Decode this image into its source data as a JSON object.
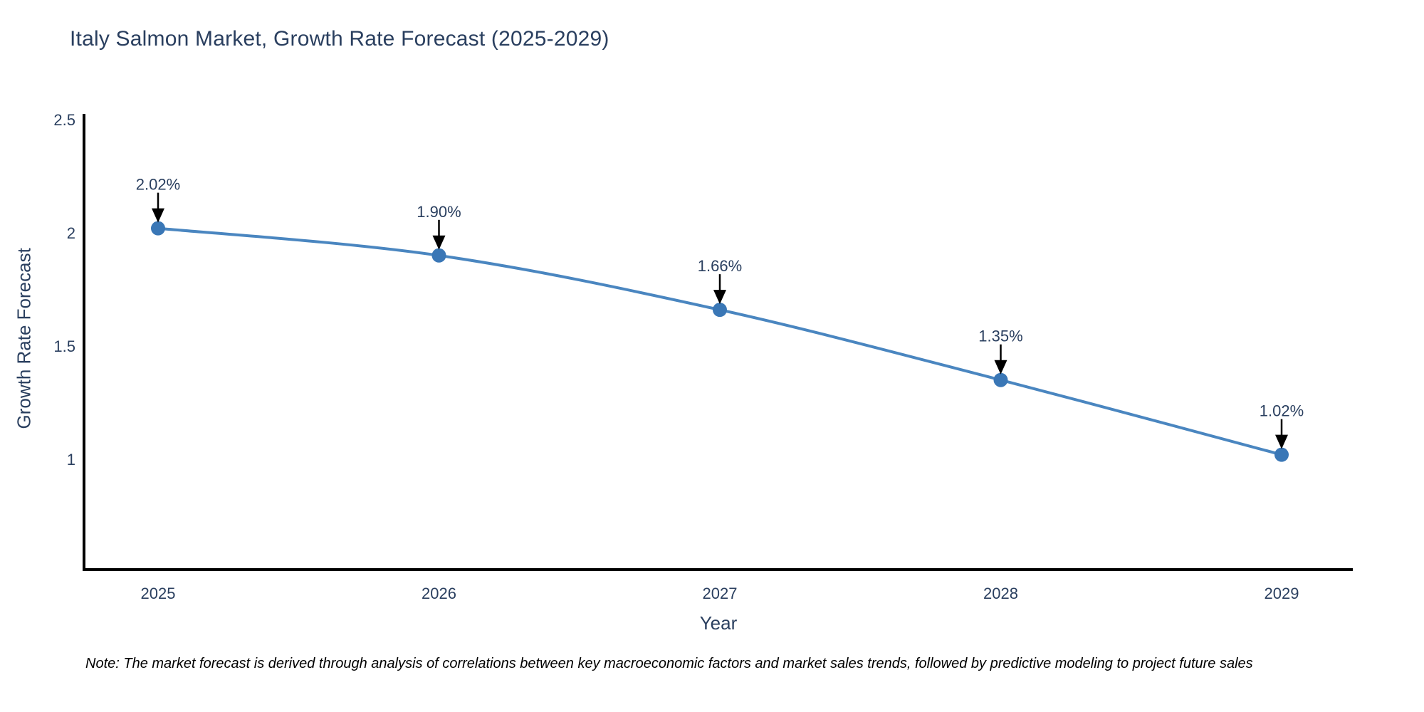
{
  "title": "Italy Salmon Market, Growth Rate Forecast (2025-2029)",
  "note": "Note: The market forecast is derived through analysis of correlations between key macroeconomic factors and market sales trends, followed by predictive modeling to project future sales",
  "colors": {
    "text": "#2a3f5f",
    "axis": "#000000",
    "line": "#4a86c0",
    "marker": "#3a77b6",
    "annotation_arrow": "#000000",
    "background": "#ffffff"
  },
  "chart_data": {
    "type": "line",
    "title": "Italy Salmon Market, Growth Rate Forecast (2025-2029)",
    "xlabel": "Year",
    "ylabel": "Growth Rate Forecast",
    "x": [
      "2025",
      "2026",
      "2027",
      "2028",
      "2029"
    ],
    "series": [
      {
        "name": "Growth Rate Forecast",
        "values": [
          2.02,
          1.9,
          1.66,
          1.35,
          1.02
        ]
      }
    ],
    "point_labels": [
      "2.02%",
      "1.90%",
      "1.66%",
      "1.35%",
      "1.02%"
    ],
    "yticks": [
      {
        "value": 1,
        "label": "1"
      },
      {
        "value": 1.5,
        "label": "1.5"
      },
      {
        "value": 2,
        "label": "2"
      },
      {
        "value": 2.5,
        "label": "2.5"
      }
    ],
    "ylim": [
      0.52,
      2.6
    ],
    "grid": false,
    "legend": "none",
    "line_shape": "spline",
    "marker_style": "circle"
  }
}
